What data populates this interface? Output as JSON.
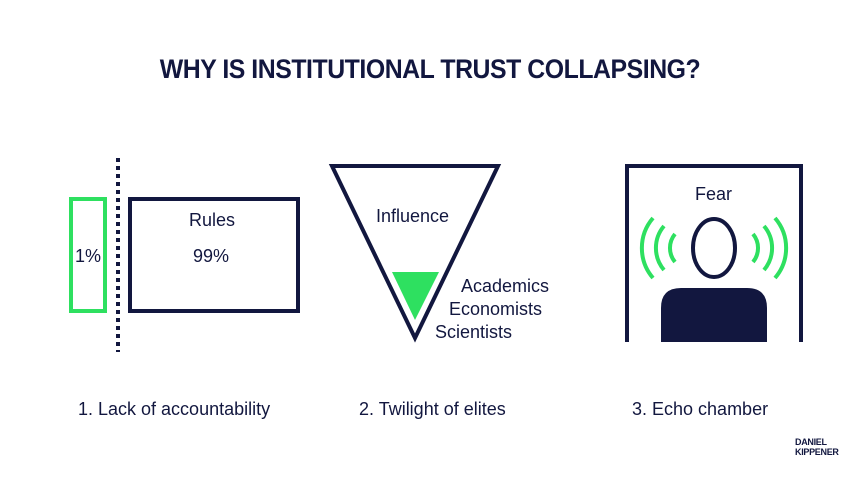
{
  "title": "WHY IS INSTITUTIONAL TRUST COLLAPSING?",
  "colors": {
    "navy": "#12173f",
    "green": "#2ee060"
  },
  "panels": [
    {
      "icon": "split-boxes-icon",
      "small_box_label": "1%",
      "large_box_title": "Rules",
      "large_box_value": "99%",
      "caption": "1. Lack of accountability"
    },
    {
      "icon": "inverted-triangle-icon",
      "top_label": "Influence",
      "groups": [
        "Academics",
        "Economists",
        "Scientists"
      ],
      "caption": "2. Twilight of elites"
    },
    {
      "icon": "person-sound-waves-icon",
      "label": "Fear",
      "caption": "3. Echo chamber"
    }
  ],
  "logo": {
    "line1": "DANIEL",
    "line2": "KIPPENER"
  }
}
